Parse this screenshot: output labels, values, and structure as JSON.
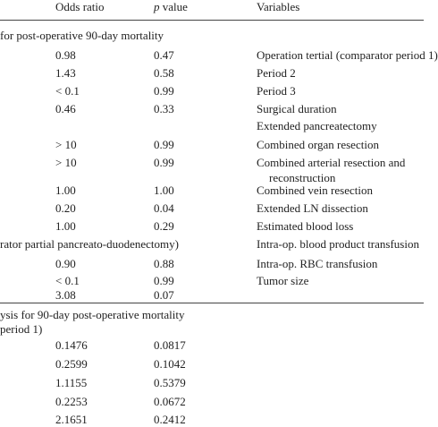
{
  "header": {
    "odds_ratio": "Odds ratio",
    "p_italic": "p",
    "p_rest": "value",
    "variables": "Variables"
  },
  "left": {
    "section_1": "for post-operative 90-day mortality",
    "rows_1": [
      [
        "0.98",
        "0.47"
      ],
      [
        "1.43",
        "0.58"
      ],
      [
        "< 0.1",
        "0.99"
      ],
      [
        "0.46",
        "0.33"
      ],
      [
        "> 10",
        "0.99"
      ],
      [
        "> 10",
        "0.99"
      ],
      [
        "1.00",
        "1.00"
      ],
      [
        "0.20",
        "0.04"
      ],
      [
        "1.00",
        "0.29"
      ]
    ],
    "note": "rator partial pancreato-duodenectomy)",
    "rows_2": [
      [
        "0.90",
        "0.88"
      ],
      [
        "< 0.1",
        "0.99"
      ],
      [
        "3.08",
        "0.07"
      ]
    ],
    "section_2": [
      "ysis for 90-day post-operative mortality",
      "period 1)"
    ],
    "rows_3": [
      [
        "0.1476",
        "0.0817"
      ],
      [
        "0.2599",
        "0.1042"
      ],
      [
        "1.1155",
        "0.5379"
      ],
      [
        "0.2253",
        "0.0672"
      ],
      [
        "2.1651",
        "0.2412"
      ]
    ]
  },
  "variables": [
    "Operation tertial (comparator period 1)",
    "Period 2",
    "Period 3",
    "Surgical duration",
    "Extended pancreatectomy",
    "Combined organ resection",
    "Combined arterial resection and",
    "reconstruction",
    "Combined vein resection",
    "Extended LN dissection",
    "Estimated blood loss",
    "Intra-op. blood product transfusion",
    "Intra-op. RBC transfusion",
    "Tumor size"
  ]
}
